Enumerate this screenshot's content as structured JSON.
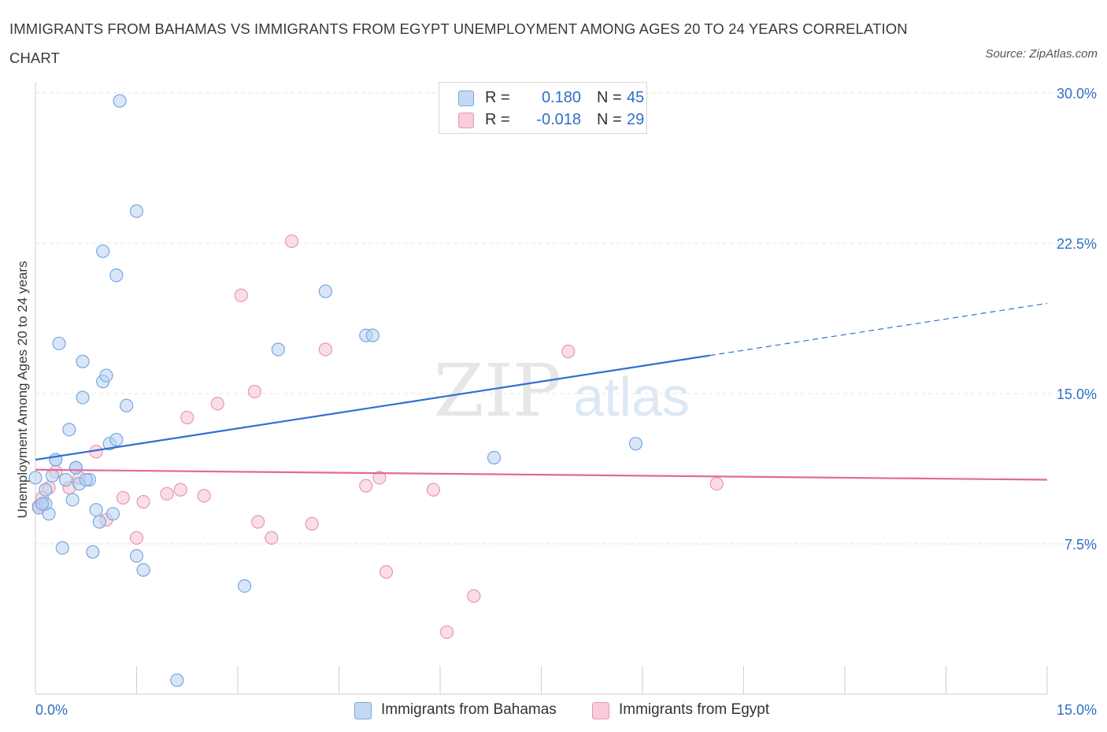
{
  "title": "IMMIGRANTS FROM BAHAMAS VS IMMIGRANTS FROM EGYPT UNEMPLOYMENT AMONG AGES 20 TO 24 YEARS CORRELATION CHART",
  "source": "Source: ZipAtlas.com",
  "watermark": {
    "zip": "ZIP",
    "atlas": "atlas"
  },
  "legend": {
    "r_label": "R =",
    "n_label": "N =",
    "rows": [
      {
        "series": "Immigrants from Bahamas",
        "r": "0.180",
        "n": "45"
      },
      {
        "series": "Immigrants from Egypt",
        "r": "-0.018",
        "n": "29"
      }
    ]
  },
  "colors": {
    "bahamas_fill": "#b8d1f3",
    "bahamas_stroke": "#7aa7e0",
    "bahamas_line": "#2f6fd1",
    "egypt_fill": "#f6c3d3",
    "egypt_stroke": "#e995b1",
    "egypt_line": "#e4699a",
    "tick_label": "#2f6fc6",
    "grid": "#e3e3e3"
  },
  "chart_data": {
    "type": "scatter",
    "title": "IMMIGRANTS FROM BAHAMAS VS IMMIGRANTS FROM EGYPT UNEMPLOYMENT AMONG AGES 20 TO 24 YEARS CORRELATION CHART",
    "xlabel": "",
    "ylabel": "Unemployment Among Ages 20 to 24 years",
    "xlim": [
      0,
      15
    ],
    "ylim": [
      0,
      30
    ],
    "x_tick_labels": [
      "0.0%",
      "15.0%"
    ],
    "y_ticks": [
      7.5,
      15,
      22.5,
      30
    ],
    "y_tick_labels": [
      "7.5%",
      "15.0%",
      "22.5%",
      "30.0%"
    ],
    "series": [
      {
        "name": "Immigrants from Bahamas",
        "r": 0.18,
        "n": 45,
        "points": [
          [
            0.0,
            10.8
          ],
          [
            0.05,
            9.3
          ],
          [
            0.1,
            9.5
          ],
          [
            0.15,
            10.2
          ],
          [
            0.2,
            9.0
          ],
          [
            0.25,
            10.9
          ],
          [
            0.3,
            11.7
          ],
          [
            0.35,
            17.5
          ],
          [
            0.4,
            7.3
          ],
          [
            0.45,
            10.7
          ],
          [
            0.5,
            13.2
          ],
          [
            0.55,
            9.7
          ],
          [
            0.6,
            11.3
          ],
          [
            0.65,
            10.5
          ],
          [
            0.7,
            14.8
          ],
          [
            0.7,
            16.6
          ],
          [
            0.8,
            10.7
          ],
          [
            0.85,
            7.1
          ],
          [
            0.9,
            9.2
          ],
          [
            0.95,
            8.6
          ],
          [
            1.0,
            22.1
          ],
          [
            1.0,
            15.6
          ],
          [
            1.05,
            15.9
          ],
          [
            1.1,
            12.5
          ],
          [
            1.15,
            9.0
          ],
          [
            1.2,
            12.7
          ],
          [
            1.2,
            20.9
          ],
          [
            1.25,
            29.6
          ],
          [
            1.35,
            14.4
          ],
          [
            1.5,
            24.1
          ],
          [
            1.5,
            6.9
          ],
          [
            1.6,
            6.2
          ],
          [
            2.1,
            0.7
          ],
          [
            3.1,
            5.4
          ],
          [
            3.6,
            17.2
          ],
          [
            4.3,
            20.1
          ],
          [
            4.9,
            17.9
          ],
          [
            5.0,
            17.9
          ],
          [
            6.8,
            11.8
          ],
          [
            8.9,
            12.5
          ],
          [
            0.15,
            9.5
          ],
          [
            0.6,
            11.3
          ],
          [
            0.3,
            11.7
          ],
          [
            0.75,
            10.7
          ],
          [
            0.1,
            9.5
          ]
        ]
      },
      {
        "name": "Immigrants from Egypt",
        "r": -0.018,
        "n": 29,
        "points": [
          [
            0.05,
            9.4
          ],
          [
            0.1,
            9.8
          ],
          [
            0.2,
            10.3
          ],
          [
            0.3,
            11.1
          ],
          [
            0.5,
            10.3
          ],
          [
            0.65,
            10.8
          ],
          [
            0.9,
            12.1
          ],
          [
            1.05,
            8.7
          ],
          [
            1.3,
            9.8
          ],
          [
            1.5,
            7.8
          ],
          [
            1.6,
            9.6
          ],
          [
            1.95,
            10.0
          ],
          [
            2.15,
            10.2
          ],
          [
            2.25,
            13.8
          ],
          [
            2.5,
            9.9
          ],
          [
            2.7,
            14.5
          ],
          [
            3.05,
            19.9
          ],
          [
            3.3,
            8.6
          ],
          [
            3.25,
            15.1
          ],
          [
            3.5,
            7.8
          ],
          [
            3.8,
            22.6
          ],
          [
            4.1,
            8.5
          ],
          [
            4.3,
            17.2
          ],
          [
            4.9,
            10.4
          ],
          [
            5.1,
            10.8
          ],
          [
            5.2,
            6.1
          ],
          [
            5.9,
            10.2
          ],
          [
            6.1,
            3.1
          ],
          [
            6.5,
            4.9
          ]
        ],
        "extra_points": [
          [
            7.9,
            17.1
          ],
          [
            10.1,
            10.5
          ]
        ]
      }
    ],
    "trend_lines": [
      {
        "series": "Immigrants from Bahamas",
        "from": [
          0,
          11.7
        ],
        "to": [
          10.0,
          16.9
        ],
        "dashed_to": [
          15,
          19.5
        ]
      },
      {
        "series": "Immigrants from Egypt",
        "from": [
          0,
          11.2
        ],
        "to": [
          15,
          10.7
        ]
      }
    ]
  }
}
